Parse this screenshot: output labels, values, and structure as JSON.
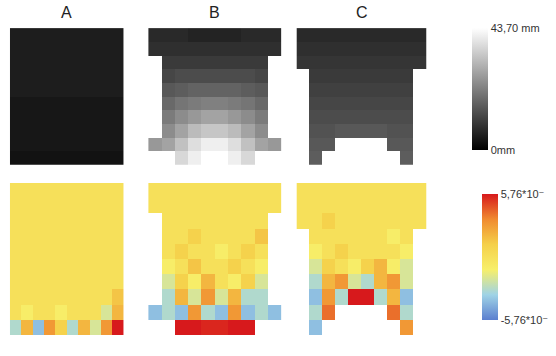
{
  "chart_data": {
    "type": "heatmap",
    "panels": [
      "A",
      "B",
      "C"
    ],
    "tick_labels": false,
    "rows": [
      {
        "colorbar_range": [
          0,
          43.7
        ],
        "colorbar_ticks": [
          {
            "value": 43.7,
            "label": "43,70 mm"
          },
          {
            "value": 0,
            "label": "0mm"
          }
        ],
        "colors": [
          "#000000",
          "#ffffff"
        ],
        "cells": [
          [
            [
              5,
              5,
              5,
              5,
              5,
              5,
              5,
              5,
              5,
              5
            ],
            [
              5,
              5,
              5,
              5,
              5,
              5,
              5,
              5,
              5,
              5
            ],
            [
              5,
              5,
              5,
              5,
              5,
              5,
              5,
              5,
              5,
              5
            ],
            [
              5,
              5,
              5,
              5,
              5,
              5,
              5,
              5,
              5,
              5
            ],
            [
              5,
              5,
              5,
              5,
              5,
              5,
              5,
              5,
              5,
              5
            ],
            [
              4,
              4,
              4,
              4,
              4,
              4,
              4,
              4,
              4,
              4
            ],
            [
              4,
              4,
              4,
              4,
              4,
              4,
              4,
              4,
              4,
              4
            ],
            [
              4,
              4,
              4,
              4,
              4,
              4,
              4,
              4,
              4,
              4
            ],
            [
              4,
              4,
              4,
              4,
              4,
              4,
              4,
              4,
              4,
              4
            ],
            [
              3,
              3,
              3,
              3,
              3,
              3,
              3,
              3,
              3,
              3
            ]
          ],
          [
            [
              7,
              7,
              7,
              6,
              6,
              6,
              6,
              7,
              7,
              7
            ],
            [
              8,
              8,
              8,
              8,
              8,
              8,
              8,
              8,
              8,
              8
            ],
            [
              null,
              10,
              10,
              10,
              10,
              10,
              10,
              10,
              10,
              null
            ],
            [
              null,
              12,
              13,
              13,
              13,
              13,
              13,
              13,
              12,
              null
            ],
            [
              null,
              15,
              16,
              17,
              17,
              17,
              17,
              16,
              15,
              null
            ],
            [
              null,
              18,
              20,
              21,
              22,
              22,
              21,
              20,
              18,
              null
            ],
            [
              null,
              21,
              24,
              26,
              28,
              28,
              26,
              24,
              21,
              null
            ],
            [
              null,
              24,
              28,
              32,
              34,
              34,
              32,
              28,
              24,
              null
            ],
            [
              26,
              28,
              33,
              38,
              41,
              41,
              38,
              33,
              28,
              26
            ],
            [
              null,
              null,
              37,
              41,
              43.7,
              43.7,
              41,
              37,
              null,
              null
            ]
          ],
          [
            [
              7,
              7,
              7,
              7,
              7,
              7,
              7,
              7,
              7,
              7
            ],
            [
              8,
              8,
              8,
              8,
              8,
              8,
              8,
              8,
              8,
              8
            ],
            [
              9,
              9,
              9,
              9,
              9,
              9,
              9,
              9,
              9,
              9
            ],
            [
              null,
              10,
              10,
              10,
              10,
              10,
              10,
              10,
              10,
              null
            ],
            [
              null,
              11,
              11,
              11,
              11,
              11,
              11,
              11,
              11,
              null
            ],
            [
              null,
              12,
              12,
              12,
              12,
              12,
              12,
              12,
              12,
              null
            ],
            [
              null,
              13,
              13,
              13,
              13,
              13,
              13,
              13,
              13,
              null
            ],
            [
              null,
              14,
              14,
              15,
              15,
              15,
              15,
              14,
              14,
              null
            ],
            [
              null,
              15,
              15,
              null,
              null,
              null,
              null,
              15,
              15,
              null
            ],
            [
              null,
              16,
              null,
              null,
              null,
              null,
              null,
              null,
              16,
              null
            ]
          ]
        ]
      },
      {
        "colorbar_range": [
          -5.76,
          5.76
        ],
        "colorbar_ticks": [
          {
            "value": 5.76,
            "label": "5,76*10⁻"
          },
          {
            "value": -5.76,
            "label": "-5,76*10⁻"
          }
        ],
        "colors": [
          "#5b7fcf",
          "#9fd3e6",
          "#f7ef6a",
          "#f5d04a",
          "#f08a30",
          "#d7191c"
        ],
        "cells": [
          [
            [
              0,
              0,
              0,
              0,
              0,
              0,
              0,
              0,
              0,
              0
            ],
            [
              0,
              0,
              0,
              0,
              0,
              0,
              0,
              0,
              0,
              0
            ],
            [
              0,
              0,
              0,
              0,
              0,
              0,
              0,
              0,
              0,
              0
            ],
            [
              0,
              0,
              0,
              0,
              0,
              0,
              0,
              0,
              0,
              0
            ],
            [
              0,
              0,
              0,
              0,
              0,
              0,
              0,
              0,
              0,
              0
            ],
            [
              0,
              0,
              0,
              0,
              0,
              0,
              0,
              0,
              0,
              0
            ],
            [
              0,
              0,
              0,
              0,
              0,
              0,
              0,
              0,
              0,
              0
            ],
            [
              0,
              0,
              0,
              0,
              0,
              0,
              0,
              0,
              0,
              1.5
            ],
            [
              0,
              -1,
              0,
              0,
              -1,
              0,
              0,
              0,
              -2,
              2
            ],
            [
              -3,
              2,
              -4,
              3,
              1,
              -3,
              2,
              -2,
              3,
              5.76
            ]
          ],
          [
            [
              0,
              0,
              0,
              0,
              0,
              0,
              0,
              0,
              0,
              0
            ],
            [
              0,
              0,
              0,
              0,
              0,
              0,
              0,
              0,
              0,
              0
            ],
            [
              null,
              0,
              0,
              0,
              0,
              0,
              0,
              0,
              0,
              null
            ],
            [
              null,
              0,
              0,
              1,
              0,
              0,
              0,
              0,
              1.5,
              null
            ],
            [
              null,
              0,
              1,
              0,
              0,
              -1,
              0,
              1,
              0,
              null
            ],
            [
              null,
              -1,
              0,
              1.5,
              0,
              0,
              1,
              0,
              -1,
              null
            ],
            [
              null,
              -2,
              1,
              -1,
              2,
              0,
              -1,
              1,
              -2,
              null
            ],
            [
              null,
              -3,
              2,
              -2,
              3,
              -2,
              2,
              -3,
              -3,
              null
            ],
            [
              -4,
              -3,
              -4,
              3,
              -3,
              -4,
              3,
              -4,
              -3,
              -4
            ],
            [
              null,
              null,
              5.76,
              5.76,
              5.5,
              5.5,
              5.76,
              5.76,
              null,
              null
            ]
          ],
          [
            [
              0,
              0,
              0,
              0,
              0,
              0,
              0,
              0,
              0,
              0
            ],
            [
              0,
              0,
              0,
              0,
              0,
              0,
              0,
              0,
              0,
              0
            ],
            [
              0,
              0,
              1,
              0,
              0,
              0,
              0,
              0,
              0,
              0
            ],
            [
              null,
              0,
              0,
              0,
              0,
              0,
              0,
              -1,
              0,
              null
            ],
            [
              null,
              -1,
              0,
              1,
              0,
              0,
              0,
              0,
              -1,
              null
            ],
            [
              null,
              -2,
              1,
              0,
              -1,
              1,
              2,
              -1,
              -2,
              null
            ],
            [
              null,
              -3,
              2,
              3,
              -2,
              -3,
              2,
              3,
              -2,
              null
            ],
            [
              null,
              -4,
              3,
              -3,
              5.76,
              5.76,
              -3,
              2,
              -4,
              null
            ],
            [
              null,
              -3,
              4,
              null,
              null,
              null,
              null,
              4,
              -3,
              null
            ],
            [
              null,
              -4,
              null,
              null,
              null,
              null,
              null,
              null,
              3,
              null
            ]
          ]
        ]
      }
    ]
  }
}
